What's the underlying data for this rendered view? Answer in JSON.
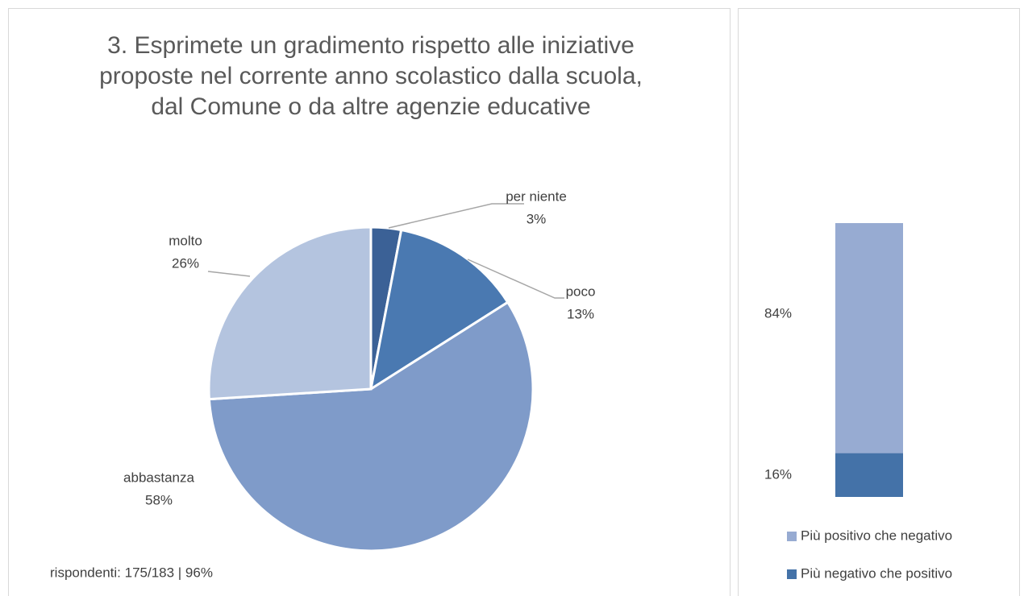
{
  "chart_data": [
    {
      "type": "pie",
      "title": "3. Esprimete un gradimento rispetto alle iniziative proposte nel corrente anno scolastico dalla scuola, dal Comune o da altre agenzie educative",
      "categories": [
        "per niente",
        "poco",
        "abbastanza",
        "molto"
      ],
      "values": [
        3,
        13,
        58,
        26
      ],
      "value_labels": [
        "3%",
        "13%",
        "58%",
        "26%"
      ],
      "colors": [
        "#3b6196",
        "#4a79b1",
        "#7f9bc9",
        "#b4c4df"
      ],
      "annotation": "rispondenti: 175/183 | 96%"
    },
    {
      "type": "stacked_bar",
      "series": [
        {
          "name": "Più negativo che positivo",
          "color": "#4472a8",
          "values": [
            16
          ],
          "value_labels": [
            "16%"
          ]
        },
        {
          "name": "Più positivo che negativo",
          "color": "#97abd2",
          "values": [
            84
          ],
          "value_labels": [
            "84%"
          ]
        }
      ],
      "ylim": [
        0,
        100
      ]
    }
  ]
}
